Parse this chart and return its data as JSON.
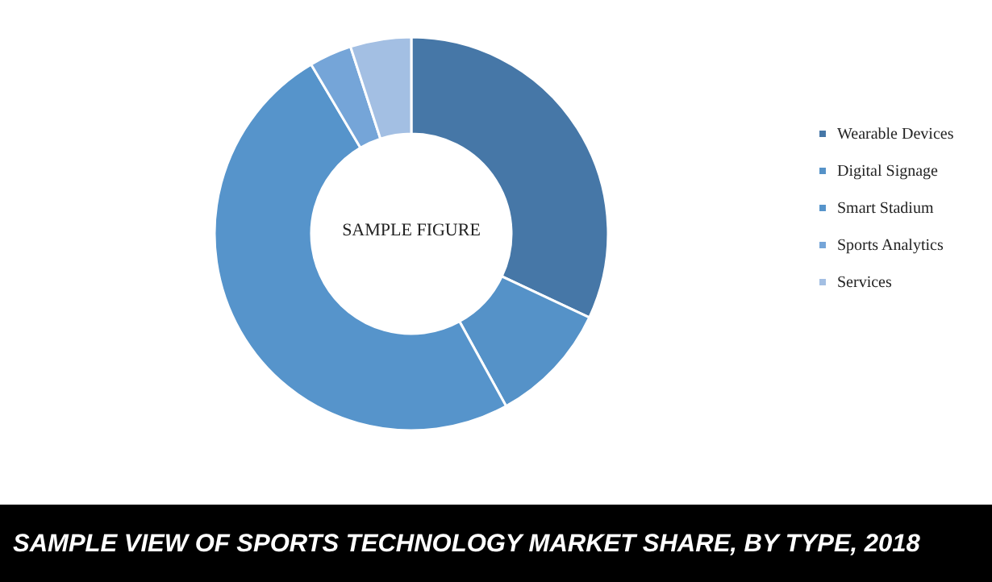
{
  "chart_data": {
    "type": "donut",
    "title": "SAMPLE VIEW OF SPORTS TECHNOLOGY MARKET SHARE, BY TYPE, 2018",
    "categories": [
      "Wearable Devices",
      "Digital Signage",
      "Smart Stadium",
      "Sports Analytics",
      "Services"
    ],
    "values": [
      32,
      10,
      49.5,
      3.5,
      5
    ],
    "colors": [
      "#4677a7",
      "#5592c8",
      "#5694cb",
      "#75a5d8",
      "#a3bfe3"
    ],
    "annotations": [
      "SAMPLE FIGURE"
    ],
    "legend": "right"
  }
}
